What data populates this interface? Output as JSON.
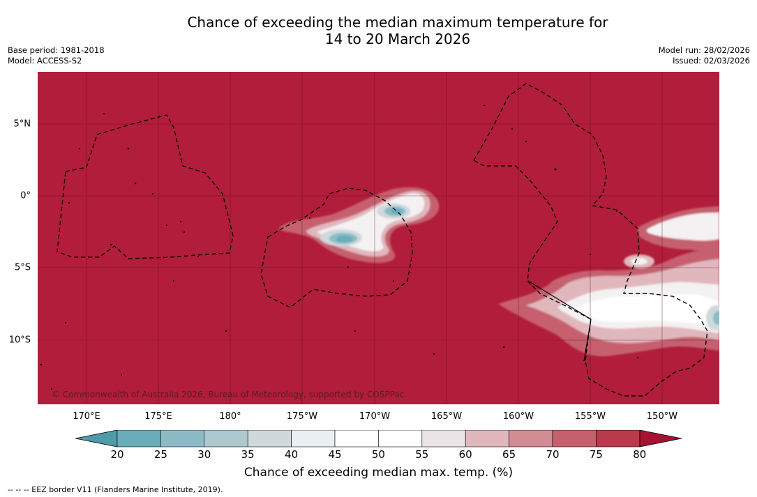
{
  "title": {
    "line1": "Chance of exceeding the median maximum temperature for",
    "line2": "14 to 20 March 2026"
  },
  "meta": {
    "base_period": "Base period: 1981-2018",
    "model": "Model: ACCESS-S2",
    "model_run": "Model run: 28/02/2026",
    "issued": "Issued: 02/03/2026"
  },
  "map": {
    "copyright": "© Commonwealth of Australia 2026, Bureau of Meteorology, supported by COSPPac",
    "lat_labels": [
      "5°N",
      "0°",
      "5°S",
      "10°S"
    ],
    "lon_labels": [
      "170°E",
      "175°E",
      "180°",
      "175°W",
      "170°W",
      "165°W",
      "160°W",
      "155°W",
      "150°W"
    ],
    "background_color": "#b11d3a"
  },
  "colorbar": {
    "ticks": [
      "20",
      "25",
      "30",
      "35",
      "40",
      "45",
      "50",
      "55",
      "60",
      "65",
      "70",
      "75",
      "80"
    ],
    "colors": [
      "#4f9aa9",
      "#69acba",
      "#8cbbc6",
      "#adc9cf",
      "#cfd8db",
      "#eaeff1",
      "#ffffff",
      "#ffffff",
      "#eae4e6",
      "#e0b7bd",
      "#d38b94",
      "#c6606e",
      "#b9394d",
      "#a61231"
    ],
    "label": "Chance of exceeding median max. temp. (%)"
  },
  "footer": {
    "legend_text": "--  --  -- EEZ border V11 (Flanders Marine Institute, 2019)."
  }
}
